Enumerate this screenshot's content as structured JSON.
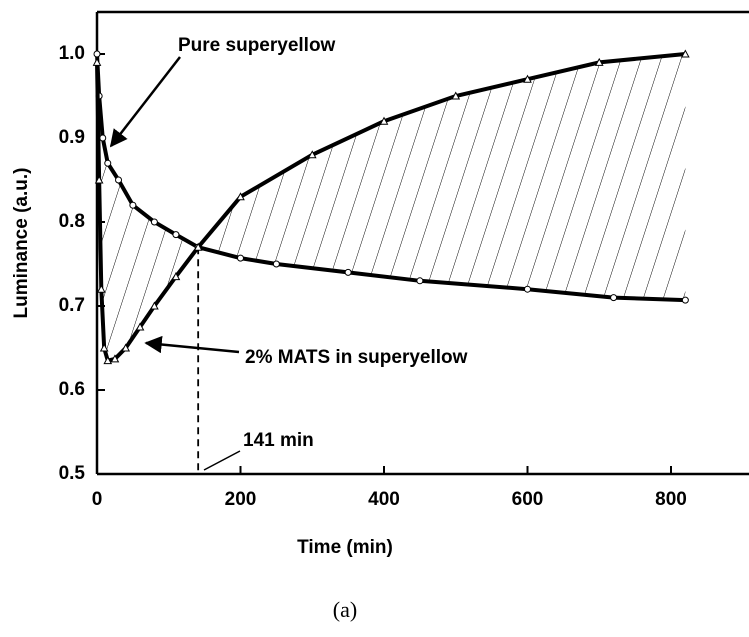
{
  "chart_data": {
    "type": "line",
    "x_label": "Time (min)",
    "y_label": "Luminance (a.u.)",
    "caption": "(a)",
    "series": [
      {
        "name": "Pure superyellow",
        "color": "#000000",
        "marker": "circle",
        "x": [
          0,
          3,
          8,
          15,
          30,
          50,
          80,
          110,
          141,
          200,
          250,
          350,
          450,
          600,
          720,
          820
        ],
        "values": [
          1.0,
          0.95,
          0.9,
          0.87,
          0.85,
          0.82,
          0.8,
          0.785,
          0.77,
          0.757,
          0.75,
          0.74,
          0.73,
          0.72,
          0.71,
          0.707
        ]
      },
      {
        "name": "2% MATS in superyellow",
        "color": "#000000",
        "marker": "triangle",
        "x": [
          0,
          3,
          6,
          10,
          15,
          25,
          40,
          60,
          80,
          110,
          141,
          200,
          300,
          400,
          500,
          600,
          700,
          820
        ],
        "values": [
          0.99,
          0.85,
          0.72,
          0.65,
          0.635,
          0.637,
          0.65,
          0.675,
          0.7,
          0.735,
          0.77,
          0.83,
          0.88,
          0.92,
          0.95,
          0.97,
          0.99,
          1.0
        ]
      }
    ],
    "annotations": [
      {
        "text": "141 min",
        "x": 141
      }
    ],
    "xlim": [
      0,
      900
    ],
    "ylim": [
      0.5,
      1.05
    ],
    "xticks": [
      0,
      200,
      400,
      600,
      800
    ],
    "yticks": [
      0.5,
      0.6,
      0.7,
      0.8,
      0.9,
      {
        "value": 1,
        "label": "1.0"
      }
    ],
    "hatch": true
  }
}
